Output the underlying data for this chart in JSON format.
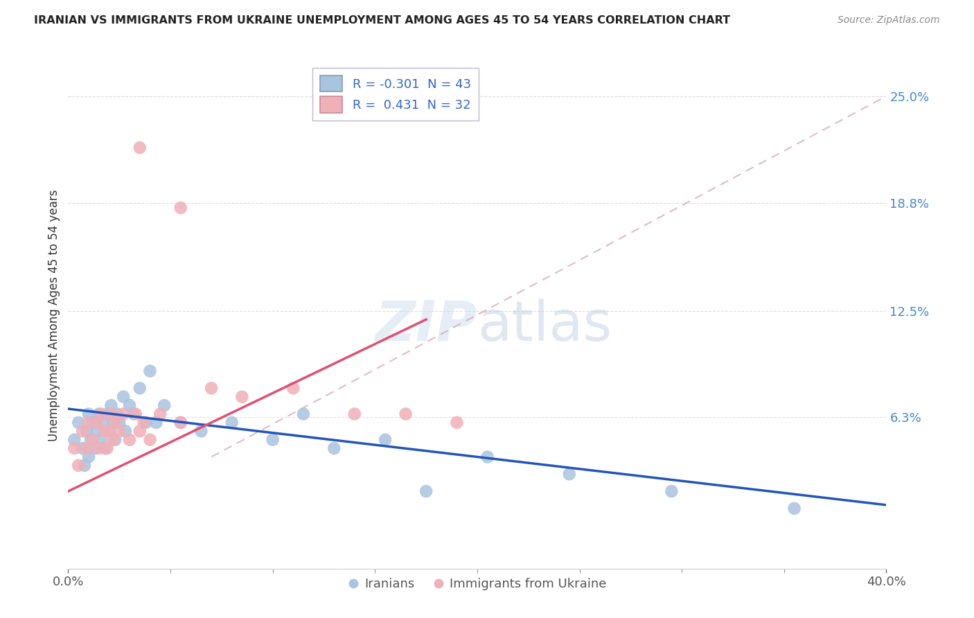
{
  "title": "IRANIAN VS IMMIGRANTS FROM UKRAINE UNEMPLOYMENT AMONG AGES 45 TO 54 YEARS CORRELATION CHART",
  "source": "Source: ZipAtlas.com",
  "ylabel": "Unemployment Among Ages 45 to 54 years",
  "legend_iranians_r": "-0.301",
  "legend_iranians_n": "43",
  "legend_ukraine_r": "0.431",
  "legend_ukraine_n": "32",
  "iranians_color": "#a8c4e0",
  "ukraine_color": "#f0b0b8",
  "iranians_line_color": "#2255bb",
  "ukraine_line_color": "#e05070",
  "diag_dash_color": "#d4a0a8",
  "background_color": "#ffffff",
  "grid_color": "#dddddd",
  "xmin": 0.0,
  "xmax": 0.4,
  "ymin": -0.025,
  "ymax": 0.27,
  "ytick_values": [
    0.063,
    0.125,
    0.188,
    0.25
  ],
  "ytick_labels": [
    "6.3%",
    "12.5%",
    "18.8%",
    "25.0%"
  ],
  "iranians_x": [
    0.003,
    0.005,
    0.007,
    0.008,
    0.009,
    0.01,
    0.01,
    0.011,
    0.012,
    0.013,
    0.014,
    0.015,
    0.016,
    0.017,
    0.018,
    0.019,
    0.02,
    0.021,
    0.022,
    0.023,
    0.024,
    0.025,
    0.027,
    0.028,
    0.03,
    0.032,
    0.035,
    0.038,
    0.04,
    0.043,
    0.047,
    0.055,
    0.065,
    0.08,
    0.1,
    0.115,
    0.13,
    0.155,
    0.175,
    0.205,
    0.245,
    0.295,
    0.355
  ],
  "iranians_y": [
    0.05,
    0.06,
    0.045,
    0.035,
    0.055,
    0.065,
    0.04,
    0.05,
    0.06,
    0.045,
    0.055,
    0.065,
    0.05,
    0.06,
    0.045,
    0.065,
    0.055,
    0.07,
    0.06,
    0.05,
    0.065,
    0.06,
    0.075,
    0.055,
    0.07,
    0.065,
    0.08,
    0.06,
    0.09,
    0.06,
    0.07,
    0.06,
    0.055,
    0.06,
    0.05,
    0.065,
    0.045,
    0.05,
    0.02,
    0.04,
    0.03,
    0.02,
    0.01
  ],
  "ukraine_x": [
    0.003,
    0.005,
    0.007,
    0.009,
    0.01,
    0.012,
    0.014,
    0.015,
    0.016,
    0.018,
    0.019,
    0.02,
    0.021,
    0.022,
    0.023,
    0.025,
    0.027,
    0.03,
    0.033,
    0.035,
    0.037,
    0.04,
    0.045,
    0.055,
    0.07,
    0.085,
    0.11,
    0.14,
    0.165,
    0.19,
    0.035,
    0.055
  ],
  "ukraine_y": [
    0.045,
    0.035,
    0.055,
    0.045,
    0.06,
    0.05,
    0.06,
    0.045,
    0.065,
    0.055,
    0.045,
    0.055,
    0.065,
    0.05,
    0.06,
    0.055,
    0.065,
    0.05,
    0.065,
    0.055,
    0.06,
    0.05,
    0.065,
    0.06,
    0.08,
    0.075,
    0.08,
    0.065,
    0.065,
    0.06,
    0.22,
    0.185
  ],
  "iran_line_x": [
    0.0,
    0.4
  ],
  "iran_line_y": [
    0.068,
    0.012
  ],
  "ukr_line_x": [
    0.0,
    0.175
  ],
  "ukr_line_y": [
    0.02,
    0.12
  ],
  "diag_line_x": [
    0.07,
    0.4
  ],
  "diag_line_y": [
    0.04,
    0.25
  ]
}
